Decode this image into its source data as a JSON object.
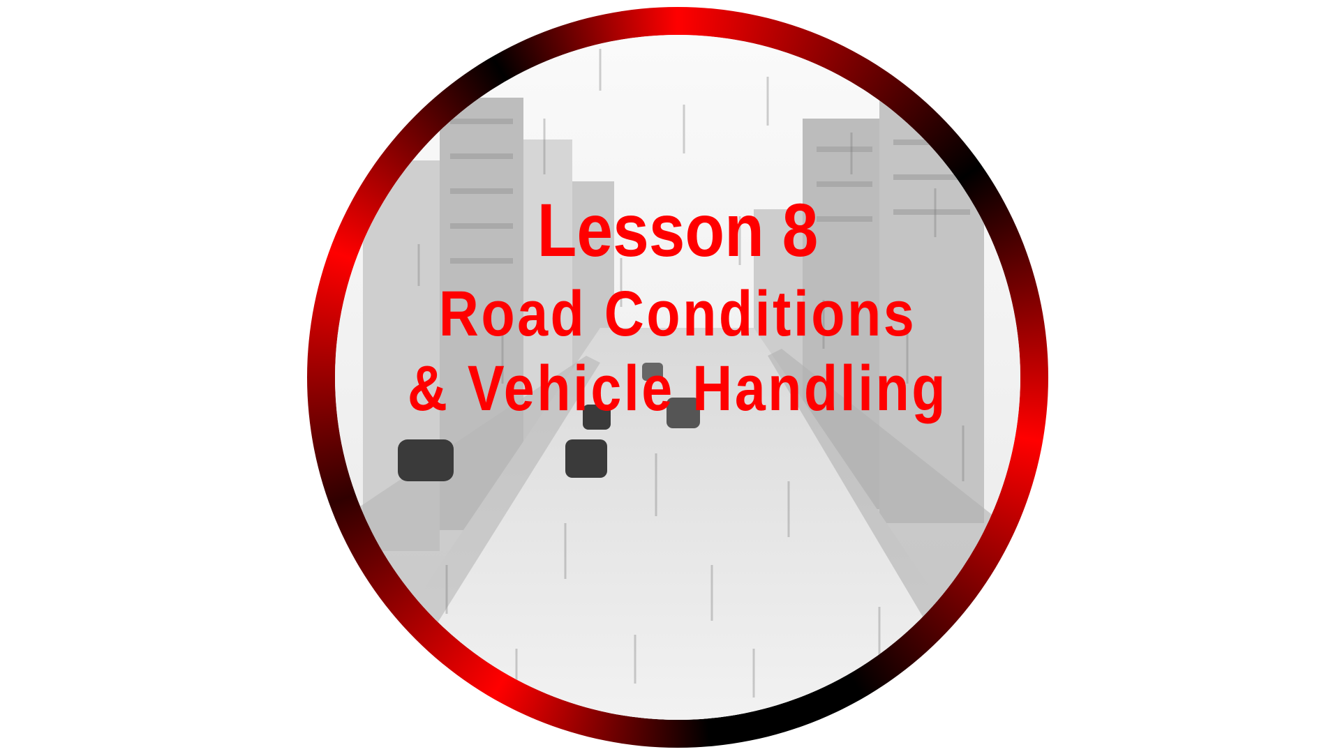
{
  "image": {
    "description_icon": "rain-street-scene",
    "ring_colors": [
      "#ff0000",
      "#000000"
    ],
    "text_color": "#ff0000"
  },
  "title": {
    "line1": "Lesson 8",
    "line2": "Road Conditions",
    "line3": "& Vehicle Handling"
  }
}
